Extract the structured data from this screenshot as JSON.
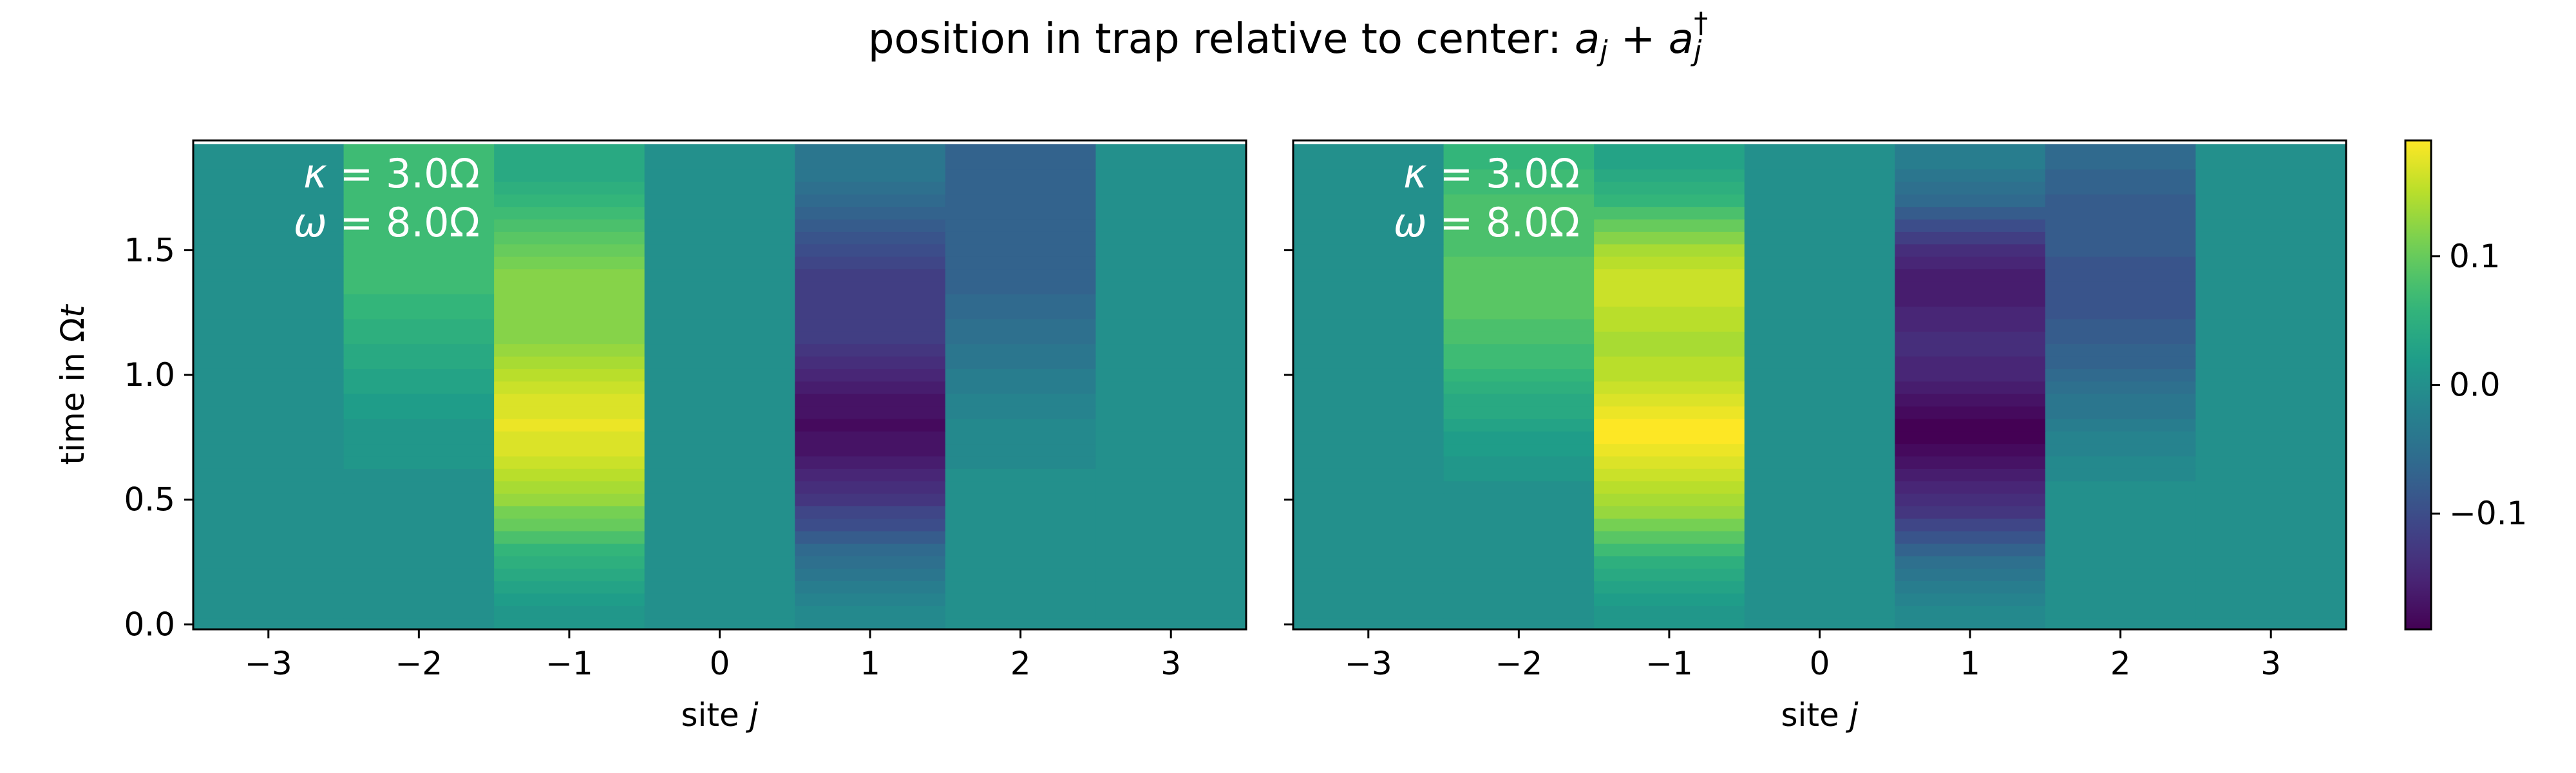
{
  "figure": {
    "suptitle": "position in trap relative to center: a_j + a_j^†"
  },
  "colors": {
    "colormap": "viridis",
    "annotation_text": "#ffffff",
    "axis": "#000000",
    "background": "#ffffff"
  },
  "chart_data": [
    {
      "type": "heatmap",
      "panel": "left",
      "xlabel": "site j",
      "ylabel": "time in Ωt",
      "x": [
        -3,
        -2,
        -1,
        0,
        1,
        2,
        3
      ],
      "x_ticks": [
        "−3",
        "−2",
        "−1",
        "0",
        "1",
        "2",
        "3"
      ],
      "xlim": [
        -3.5,
        3.5
      ],
      "y_ticks": [
        "0.0",
        "0.5",
        "1.0",
        "1.5"
      ],
      "y_tick_values": [
        0.0,
        0.5,
        1.0,
        1.5
      ],
      "ylim": [
        -0.02,
        1.94
      ],
      "annotation": [
        "κ = 3.0Ω",
        "ω = 8.0Ω"
      ],
      "t": [
        0.0,
        0.05,
        0.1,
        0.15,
        0.2,
        0.25,
        0.3,
        0.35,
        0.4,
        0.45,
        0.5,
        0.55,
        0.6,
        0.65,
        0.7,
        0.75,
        0.8,
        0.85,
        0.9,
        0.95,
        1.0,
        1.05,
        1.1,
        1.15,
        1.2,
        1.25,
        1.3,
        1.35,
        1.4,
        1.45,
        1.5,
        1.55,
        1.6,
        1.65,
        1.7,
        1.75,
        1.8,
        1.85,
        1.9
      ],
      "values": [
        [
          0.0,
          0.0,
          0.01,
          0.0,
          -0.01,
          0.0,
          0.0
        ],
        [
          0.0,
          0.0,
          0.01,
          0.0,
          -0.01,
          0.0,
          0.0
        ],
        [
          0.0,
          0.0,
          0.02,
          0.0,
          -0.02,
          0.0,
          0.0
        ],
        [
          0.0,
          0.0,
          0.03,
          0.0,
          -0.03,
          0.0,
          0.0
        ],
        [
          0.0,
          0.0,
          0.04,
          0.0,
          -0.04,
          0.0,
          0.0
        ],
        [
          0.0,
          0.0,
          0.05,
          0.0,
          -0.05,
          0.0,
          0.0
        ],
        [
          0.0,
          0.0,
          0.06,
          0.0,
          -0.06,
          0.0,
          0.0
        ],
        [
          0.0,
          0.0,
          0.08,
          0.0,
          -0.08,
          0.0,
          0.0
        ],
        [
          0.0,
          0.0,
          0.1,
          0.0,
          -0.1,
          0.0,
          0.0
        ],
        [
          0.0,
          0.0,
          0.11,
          0.0,
          -0.11,
          0.0,
          0.0
        ],
        [
          0.0,
          0.0,
          0.13,
          0.0,
          -0.13,
          0.0,
          0.0
        ],
        [
          0.0,
          0.0,
          0.14,
          0.0,
          -0.14,
          0.0,
          0.0
        ],
        [
          0.0,
          0.0,
          0.15,
          0.0,
          -0.15,
          0.0,
          0.0
        ],
        [
          0.0,
          0.01,
          0.16,
          0.0,
          -0.16,
          -0.01,
          0.0
        ],
        [
          0.0,
          0.01,
          0.17,
          0.0,
          -0.17,
          -0.01,
          0.0
        ],
        [
          0.0,
          0.01,
          0.17,
          0.0,
          -0.17,
          -0.01,
          0.0
        ],
        [
          0.0,
          0.01,
          0.18,
          0.0,
          -0.18,
          -0.01,
          0.0
        ],
        [
          0.0,
          0.02,
          0.17,
          0.0,
          -0.17,
          -0.02,
          0.0
        ],
        [
          0.0,
          0.02,
          0.17,
          0.0,
          -0.17,
          -0.02,
          0.0
        ],
        [
          0.0,
          0.03,
          0.16,
          0.0,
          -0.16,
          -0.03,
          0.0
        ],
        [
          0.0,
          0.03,
          0.15,
          0.0,
          -0.15,
          -0.03,
          0.0
        ],
        [
          0.0,
          0.04,
          0.14,
          0.0,
          -0.14,
          -0.04,
          0.0
        ],
        [
          0.0,
          0.04,
          0.13,
          0.0,
          -0.13,
          -0.04,
          0.0
        ],
        [
          0.0,
          0.05,
          0.12,
          0.0,
          -0.12,
          -0.05,
          0.0
        ],
        [
          0.0,
          0.05,
          0.12,
          0.0,
          -0.12,
          -0.05,
          0.0
        ],
        [
          0.0,
          0.06,
          0.12,
          0.0,
          -0.12,
          -0.06,
          0.0
        ],
        [
          0.0,
          0.06,
          0.12,
          0.0,
          -0.12,
          -0.06,
          0.0
        ],
        [
          0.0,
          0.07,
          0.12,
          0.0,
          -0.12,
          -0.07,
          0.0
        ],
        [
          0.0,
          0.07,
          0.12,
          0.0,
          -0.12,
          -0.07,
          0.0
        ],
        [
          0.0,
          0.07,
          0.11,
          0.0,
          -0.11,
          -0.07,
          0.0
        ],
        [
          0.0,
          0.07,
          0.1,
          0.0,
          -0.1,
          -0.07,
          0.0
        ],
        [
          0.0,
          0.07,
          0.09,
          0.0,
          -0.09,
          -0.07,
          0.0
        ],
        [
          0.0,
          0.07,
          0.08,
          0.0,
          -0.08,
          -0.07,
          0.0
        ],
        [
          0.0,
          0.07,
          0.07,
          0.0,
          -0.07,
          -0.07,
          0.0
        ],
        [
          0.0,
          0.07,
          0.06,
          0.0,
          -0.06,
          -0.07,
          0.0
        ],
        [
          0.0,
          0.07,
          0.05,
          0.0,
          -0.05,
          -0.07,
          0.0
        ],
        [
          0.0,
          0.07,
          0.04,
          0.0,
          -0.04,
          -0.07,
          0.0
        ],
        [
          0.0,
          0.07,
          0.04,
          0.0,
          -0.04,
          -0.07,
          0.0
        ],
        [
          0.0,
          0.07,
          0.04,
          0.0,
          -0.04,
          -0.07,
          0.0
        ]
      ]
    },
    {
      "type": "heatmap",
      "panel": "right",
      "xlabel": "site j",
      "ylabel": "",
      "x": [
        -3,
        -2,
        -1,
        0,
        1,
        2,
        3
      ],
      "x_ticks": [
        "−3",
        "−2",
        "−1",
        "0",
        "1",
        "2",
        "3"
      ],
      "xlim": [
        -3.5,
        3.5
      ],
      "y_ticks": [],
      "ylim": [
        -0.02,
        1.94
      ],
      "annotation": [
        "κ = 3.0Ω",
        "ω = 8.0Ω"
      ],
      "t": [
        0.0,
        0.05,
        0.1,
        0.15,
        0.2,
        0.25,
        0.3,
        0.35,
        0.4,
        0.45,
        0.5,
        0.55,
        0.6,
        0.65,
        0.7,
        0.75,
        0.8,
        0.85,
        0.9,
        0.95,
        1.0,
        1.05,
        1.1,
        1.15,
        1.2,
        1.25,
        1.3,
        1.35,
        1.4,
        1.45,
        1.5,
        1.55,
        1.6,
        1.65,
        1.7,
        1.75,
        1.8,
        1.85,
        1.9
      ],
      "values": [
        [
          0.0,
          0.0,
          0.01,
          0.0,
          -0.01,
          0.0,
          0.0
        ],
        [
          0.0,
          0.0,
          0.01,
          0.0,
          -0.01,
          0.0,
          0.0
        ],
        [
          0.0,
          0.0,
          0.02,
          0.0,
          -0.02,
          0.0,
          0.0
        ],
        [
          0.0,
          0.0,
          0.03,
          0.0,
          -0.03,
          0.0,
          0.0
        ],
        [
          0.0,
          0.0,
          0.04,
          0.0,
          -0.04,
          0.0,
          0.0
        ],
        [
          0.0,
          0.0,
          0.05,
          0.0,
          -0.05,
          0.0,
          0.0
        ],
        [
          0.0,
          0.0,
          0.07,
          0.0,
          -0.07,
          0.0,
          0.0
        ],
        [
          0.0,
          0.0,
          0.09,
          0.0,
          -0.09,
          0.0,
          0.0
        ],
        [
          0.0,
          0.0,
          0.11,
          0.0,
          -0.11,
          0.0,
          0.0
        ],
        [
          0.0,
          0.0,
          0.13,
          0.0,
          -0.13,
          0.0,
          0.0
        ],
        [
          0.0,
          0.0,
          0.14,
          0.0,
          -0.14,
          0.0,
          0.0
        ],
        [
          0.0,
          0.0,
          0.15,
          0.0,
          -0.15,
          0.0,
          0.0
        ],
        [
          0.0,
          0.01,
          0.16,
          0.0,
          -0.16,
          -0.01,
          0.0
        ],
        [
          0.0,
          0.01,
          0.17,
          0.0,
          -0.17,
          -0.01,
          0.0
        ],
        [
          0.0,
          0.02,
          0.18,
          0.0,
          -0.18,
          -0.02,
          0.0
        ],
        [
          0.0,
          0.02,
          0.19,
          0.0,
          -0.19,
          -0.02,
          0.0
        ],
        [
          0.0,
          0.03,
          0.19,
          0.0,
          -0.19,
          -0.03,
          0.0
        ],
        [
          0.0,
          0.04,
          0.18,
          0.0,
          -0.18,
          -0.04,
          0.0
        ],
        [
          0.0,
          0.04,
          0.17,
          0.0,
          -0.17,
          -0.04,
          0.0
        ],
        [
          0.0,
          0.05,
          0.16,
          0.0,
          -0.16,
          -0.05,
          0.0
        ],
        [
          0.0,
          0.06,
          0.15,
          0.0,
          -0.15,
          -0.06,
          0.0
        ],
        [
          0.0,
          0.07,
          0.15,
          0.0,
          -0.15,
          -0.07,
          0.0
        ],
        [
          0.0,
          0.07,
          0.14,
          0.0,
          -0.14,
          -0.07,
          0.0
        ],
        [
          0.0,
          0.08,
          0.14,
          0.0,
          -0.14,
          -0.08,
          0.0
        ],
        [
          0.0,
          0.08,
          0.15,
          0.0,
          -0.15,
          -0.08,
          0.0
        ],
        [
          0.0,
          0.09,
          0.15,
          0.0,
          -0.15,
          -0.09,
          0.0
        ],
        [
          0.0,
          0.09,
          0.16,
          0.0,
          -0.16,
          -0.09,
          0.0
        ],
        [
          0.0,
          0.09,
          0.16,
          0.0,
          -0.16,
          -0.09,
          0.0
        ],
        [
          0.0,
          0.09,
          0.16,
          0.0,
          -0.16,
          -0.09,
          0.0
        ],
        [
          0.0,
          0.09,
          0.15,
          0.0,
          -0.15,
          -0.09,
          0.0
        ],
        [
          0.0,
          0.08,
          0.14,
          0.0,
          -0.14,
          -0.08,
          0.0
        ],
        [
          0.0,
          0.08,
          0.12,
          0.0,
          -0.12,
          -0.08,
          0.0
        ],
        [
          0.0,
          0.08,
          0.1,
          0.0,
          -0.1,
          -0.08,
          0.0
        ],
        [
          0.0,
          0.08,
          0.08,
          0.0,
          -0.08,
          -0.08,
          0.0
        ],
        [
          0.0,
          0.08,
          0.06,
          0.0,
          -0.06,
          -0.08,
          0.0
        ],
        [
          0.0,
          0.07,
          0.05,
          0.0,
          -0.05,
          -0.07,
          0.0
        ],
        [
          0.0,
          0.07,
          0.04,
          0.0,
          -0.04,
          -0.07,
          0.0
        ],
        [
          0.0,
          0.06,
          0.03,
          0.0,
          -0.03,
          -0.06,
          0.0
        ],
        [
          0.0,
          0.06,
          0.03,
          0.0,
          -0.03,
          -0.06,
          0.0
        ]
      ]
    },
    {
      "type": "colorbar",
      "vlim": [
        -0.19,
        0.19
      ],
      "ticks": [
        -0.1,
        0.0,
        0.1
      ],
      "tick_labels": [
        "−0.1",
        "0.0",
        "0.1"
      ]
    }
  ]
}
